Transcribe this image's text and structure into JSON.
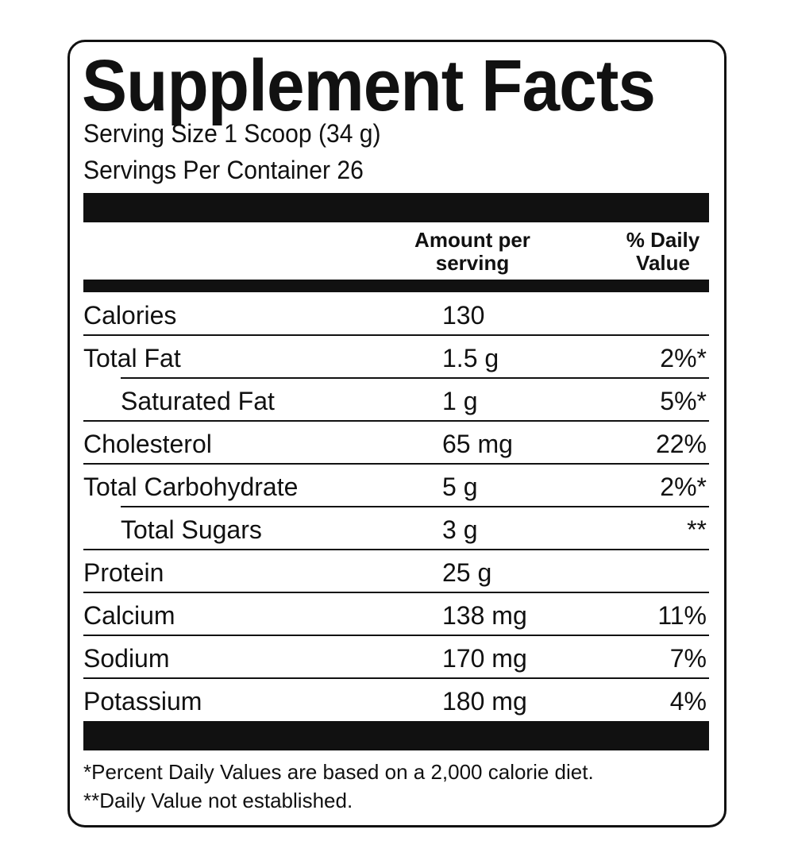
{
  "title": "Supplement Facts",
  "serving_size": "Serving Size 1 Scoop (34 g)",
  "servings_per_container": "Servings Per Container 26",
  "header": {
    "amount_line1": "Amount per",
    "amount_line2": "serving",
    "dv_line1": "% Daily",
    "dv_line2": "Value"
  },
  "rows": [
    {
      "name": "Calories",
      "amount": "130",
      "dv": ""
    },
    {
      "name": "Total Fat",
      "amount": "1.5 g",
      "dv": "2%*"
    },
    {
      "name": "Saturated Fat",
      "amount": "1 g",
      "dv": "5%*"
    },
    {
      "name": "Cholesterol",
      "amount": "65 mg",
      "dv": "22%"
    },
    {
      "name": "Total Carbohydrate",
      "amount": "5 g",
      "dv": "2%*"
    },
    {
      "name": "Total Sugars",
      "amount": "3 g",
      "dv": "**"
    },
    {
      "name": "Protein",
      "amount": "25 g",
      "dv": ""
    },
    {
      "name": "Calcium",
      "amount": "138 mg",
      "dv": "11%"
    },
    {
      "name": "Sodium",
      "amount": "170 mg",
      "dv": "7%"
    },
    {
      "name": "Potassium",
      "amount": "180 mg",
      "dv": "4%"
    }
  ],
  "footnotes": [
    "*Percent Daily Values are based on a 2,000 calorie diet.",
    "**Daily Value not established."
  ]
}
